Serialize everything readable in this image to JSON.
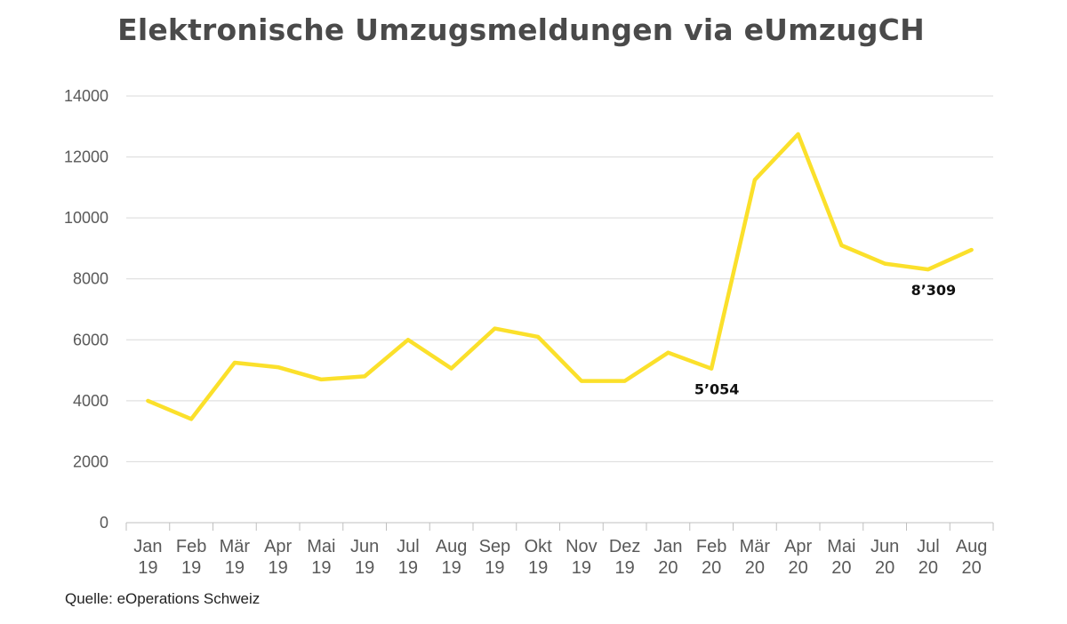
{
  "chart_data": {
    "type": "line",
    "title": "Elektronische Umzugsmeldungen via eUmzugCH",
    "xlabel": "",
    "ylabel": "",
    "ylim": [
      0,
      14000
    ],
    "yticks": [
      "0",
      "2000",
      "4000",
      "6000",
      "8000",
      "10000",
      "12000",
      "14000"
    ],
    "grid": true,
    "legend": "none",
    "categories": [
      [
        "Jan",
        "19"
      ],
      [
        "Feb",
        "19"
      ],
      [
        "Mär",
        "19"
      ],
      [
        "Apr",
        "19"
      ],
      [
        "Mai",
        "19"
      ],
      [
        "Jun",
        "19"
      ],
      [
        "Jul",
        "19"
      ],
      [
        "Aug",
        "19"
      ],
      [
        "Sep",
        "19"
      ],
      [
        "Okt",
        "19"
      ],
      [
        "Nov",
        "19"
      ],
      [
        "Dez",
        "19"
      ],
      [
        "Jan",
        "20"
      ],
      [
        "Feb",
        "20"
      ],
      [
        "Mär",
        "20"
      ],
      [
        "Apr",
        "20"
      ],
      [
        "Mai",
        "20"
      ],
      [
        "Jun",
        "20"
      ],
      [
        "Jul",
        "20"
      ],
      [
        "Aug",
        "20"
      ]
    ],
    "series": [
      {
        "color": "#fbe02b",
        "values": [
          4000,
          3400,
          5250,
          5100,
          4700,
          4800,
          6000,
          5060,
          6370,
          6100,
          4650,
          4650,
          5580,
          5054,
          11250,
          12750,
          9100,
          8500,
          8309,
          8950
        ]
      }
    ],
    "annotations": [
      {
        "index": 13,
        "text": "5’054"
      },
      {
        "index": 18,
        "text": "8’309"
      }
    ],
    "source": "Quelle: eOperations Schweiz"
  }
}
